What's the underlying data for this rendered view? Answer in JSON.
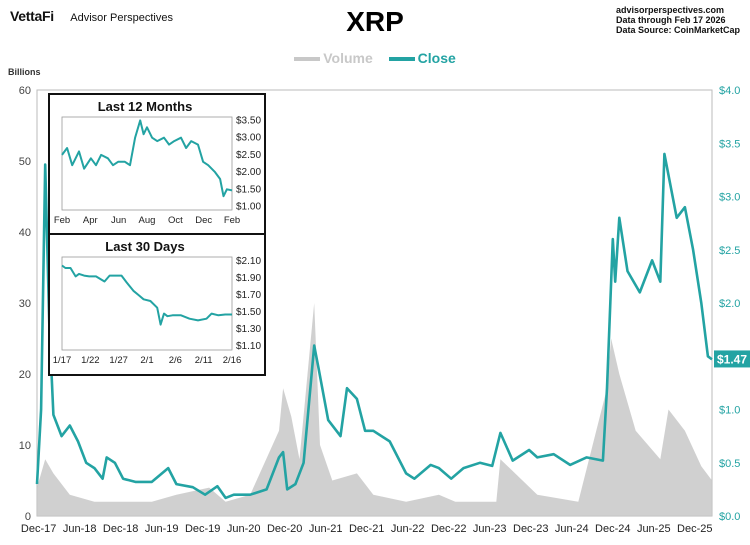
{
  "header": {
    "brand": "VettaFi",
    "tagline": "Advisor Perspectives",
    "title": "XRP",
    "source_lines": [
      "advisorperspectives.com",
      "Data through Feb 17 2026",
      "Data Source: CoinMarketCap"
    ]
  },
  "colors": {
    "close": "#23a3a3",
    "volume": "#c8c8c8",
    "axis_right": "#23a3a3",
    "text": "#333333"
  },
  "chart_data": [
    {
      "id": "main",
      "type": "line",
      "legend": [
        {
          "name": "Volume",
          "color": "#c8c8c8"
        },
        {
          "name": "Close",
          "color": "#23a3a3"
        }
      ],
      "legend_position": "top-center",
      "left_axis": {
        "label": "Billions",
        "min": 0,
        "max": 60,
        "ticks": [
          0,
          10,
          20,
          30,
          40,
          50,
          60
        ]
      },
      "right_axis": {
        "min": 0,
        "max": 4,
        "ticks": [
          "$0.0",
          "$0.5",
          "$1.0",
          "$1.5",
          "$2.0",
          "$2.5",
          "$3.0",
          "$3.5",
          "$4.0"
        ]
      },
      "x_labels": [
        "Dec-17",
        "Jun-18",
        "Dec-18",
        "Jun-19",
        "Dec-19",
        "Jun-20",
        "Dec-20",
        "Jun-21",
        "Dec-21",
        "Jun-22",
        "Dec-22",
        "Jun-23",
        "Dec-23",
        "Jun-24",
        "Dec-24",
        "Jun-25",
        "Dec-25"
      ],
      "last_value_label": "$1.47",
      "grid": false,
      "series": [
        {
          "name": "Close",
          "axis": "right",
          "x": [
            2017.9,
            2017.95,
            2018.0,
            2018.05,
            2018.1,
            2018.2,
            2018.3,
            2018.4,
            2018.5,
            2018.6,
            2018.7,
            2018.75,
            2018.85,
            2018.95,
            2019.1,
            2019.3,
            2019.5,
            2019.6,
            2019.8,
            2019.95,
            2020.1,
            2020.2,
            2020.3,
            2020.5,
            2020.7,
            2020.85,
            2020.9,
            2020.95,
            2021.05,
            2021.15,
            2021.28,
            2021.33,
            2021.45,
            2021.6,
            2021.68,
            2021.8,
            2021.9,
            2022.0,
            2022.2,
            2022.4,
            2022.5,
            2022.7,
            2022.8,
            2022.95,
            2023.1,
            2023.3,
            2023.45,
            2023.55,
            2023.7,
            2023.9,
            2024.0,
            2024.2,
            2024.4,
            2024.6,
            2024.8,
            2024.85,
            2024.92,
            2024.95,
            2025.0,
            2025.1,
            2025.25,
            2025.4,
            2025.5,
            2025.55,
            2025.7,
            2025.8,
            2025.9,
            2026.0,
            2026.08,
            2026.13
          ],
          "values": [
            0.3,
            1.0,
            3.3,
            1.8,
            0.95,
            0.75,
            0.85,
            0.7,
            0.5,
            0.45,
            0.35,
            0.55,
            0.5,
            0.35,
            0.32,
            0.32,
            0.45,
            0.3,
            0.27,
            0.2,
            0.28,
            0.17,
            0.2,
            0.2,
            0.25,
            0.55,
            0.6,
            0.25,
            0.3,
            0.5,
            1.6,
            1.4,
            0.9,
            0.75,
            1.2,
            1.1,
            0.8,
            0.8,
            0.7,
            0.4,
            0.35,
            0.48,
            0.45,
            0.35,
            0.45,
            0.5,
            0.47,
            0.78,
            0.52,
            0.62,
            0.55,
            0.58,
            0.48,
            0.55,
            0.52,
            1.2,
            2.6,
            2.2,
            2.8,
            2.3,
            2.1,
            2.4,
            2.2,
            3.4,
            2.8,
            2.9,
            2.5,
            2.0,
            1.5,
            1.47
          ]
        },
        {
          "name": "Volume",
          "axis": "left",
          "x": [
            2017.9,
            2018.0,
            2018.1,
            2018.3,
            2018.6,
            2019.0,
            2019.3,
            2019.6,
            2020.0,
            2020.2,
            2020.5,
            2020.85,
            2020.9,
            2021.0,
            2021.1,
            2021.28,
            2021.35,
            2021.5,
            2021.8,
            2022.0,
            2022.4,
            2022.8,
            2023.0,
            2023.5,
            2023.55,
            2024.0,
            2024.5,
            2024.85,
            2024.9,
            2025.0,
            2025.2,
            2025.5,
            2025.6,
            2025.8,
            2026.0,
            2026.13
          ],
          "values": [
            4,
            8,
            6,
            3,
            2,
            2,
            2,
            3,
            4,
            2,
            3,
            12,
            18,
            14,
            8,
            30,
            10,
            5,
            6,
            3,
            2,
            3,
            2,
            2,
            8,
            3,
            2,
            18,
            25,
            20,
            12,
            8,
            15,
            12,
            7,
            5
          ]
        }
      ]
    },
    {
      "id": "last-12-months",
      "type": "line",
      "title": "Last 12 Months",
      "x_labels": [
        "Feb",
        "Apr",
        "Jun",
        "Aug",
        "Oct",
        "Dec",
        "Feb"
      ],
      "y_ticks": [
        "$3.50",
        "$3.00",
        "$2.50",
        "$2.00",
        "$1.50",
        "$1.00"
      ],
      "y_range": [
        0.9,
        3.6
      ],
      "x": [
        0,
        0.03,
        0.06,
        0.1,
        0.13,
        0.17,
        0.2,
        0.23,
        0.27,
        0.3,
        0.33,
        0.37,
        0.4,
        0.43,
        0.46,
        0.48,
        0.5,
        0.53,
        0.56,
        0.6,
        0.63,
        0.66,
        0.7,
        0.73,
        0.76,
        0.8,
        0.83,
        0.86,
        0.9,
        0.93,
        0.95,
        0.97,
        1.0
      ],
      "values": [
        2.5,
        2.7,
        2.2,
        2.6,
        2.1,
        2.4,
        2.2,
        2.5,
        2.4,
        2.2,
        2.3,
        2.3,
        2.2,
        3.0,
        3.5,
        3.1,
        3.3,
        3.0,
        2.9,
        3.0,
        2.8,
        2.9,
        3.0,
        2.7,
        2.9,
        2.8,
        2.3,
        2.2,
        2.0,
        1.8,
        1.3,
        1.5,
        1.47
      ]
    },
    {
      "id": "last-30-days",
      "type": "line",
      "title": "Last 30 Days",
      "x_labels": [
        "1/17",
        "1/22",
        "1/27",
        "2/1",
        "2/6",
        "2/11",
        "2/16"
      ],
      "y_ticks": [
        "$2.10",
        "$1.90",
        "$1.70",
        "$1.50",
        "$1.30",
        "$1.10"
      ],
      "y_range": [
        1.05,
        2.15
      ],
      "x": [
        0,
        0.02,
        0.05,
        0.08,
        0.1,
        0.13,
        0.16,
        0.2,
        0.25,
        0.28,
        0.31,
        0.35,
        0.38,
        0.42,
        0.45,
        0.48,
        0.52,
        0.56,
        0.58,
        0.6,
        0.62,
        0.65,
        0.7,
        0.75,
        0.8,
        0.85,
        0.88,
        0.92,
        0.96,
        1.0
      ],
      "values": [
        2.05,
        2.02,
        2.02,
        1.92,
        1.95,
        1.93,
        1.92,
        1.92,
        1.86,
        1.93,
        1.93,
        1.93,
        1.85,
        1.75,
        1.7,
        1.65,
        1.63,
        1.55,
        1.35,
        1.48,
        1.45,
        1.46,
        1.46,
        1.42,
        1.4,
        1.42,
        1.48,
        1.46,
        1.47,
        1.47
      ]
    }
  ]
}
